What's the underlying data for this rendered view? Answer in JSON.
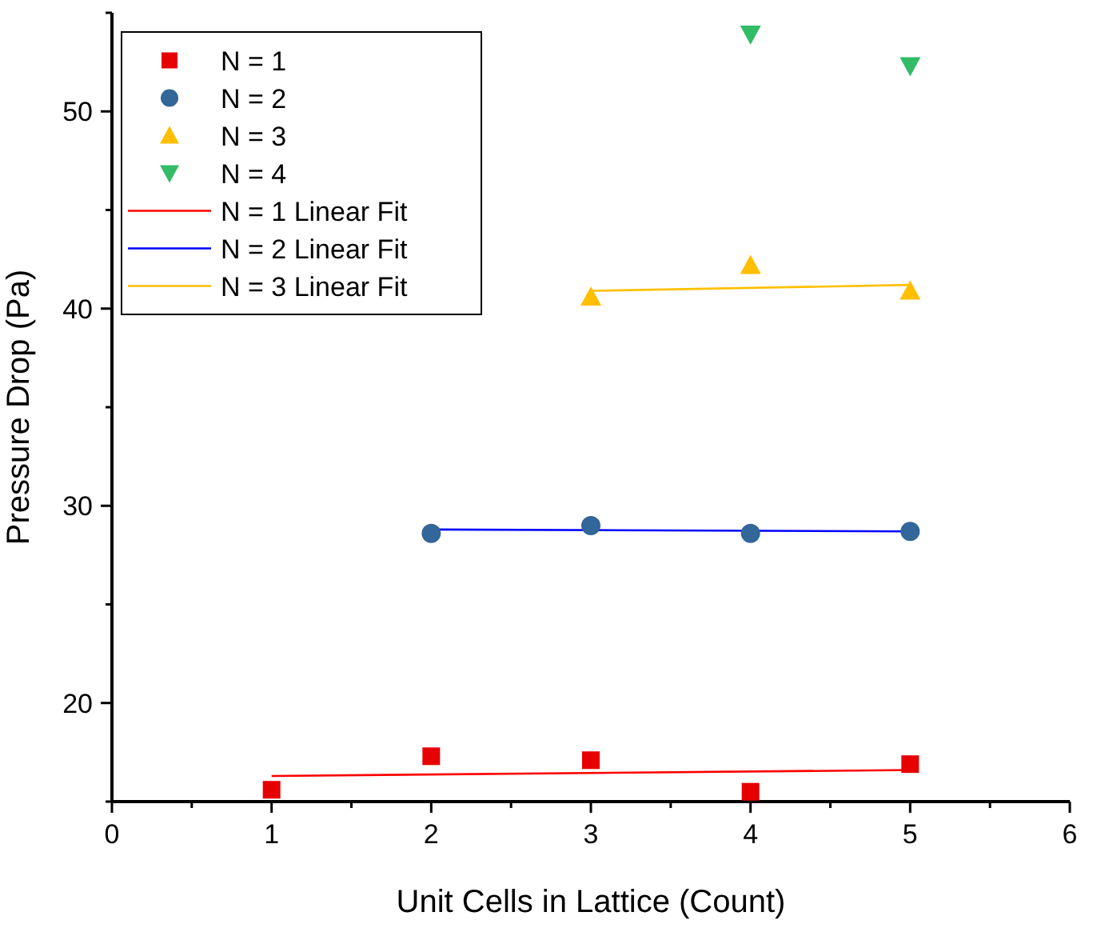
{
  "chart_data": {
    "type": "scatter",
    "xlabel": "Unit Cells in Lattice (Count)",
    "ylabel": "Pressure Drop (Pa)",
    "xlim": [
      0,
      6
    ],
    "xticks": [
      0,
      {
        "value": 0.5,
        "label": null
      },
      1,
      {
        "value": 1.5,
        "label": null
      },
      2,
      {
        "value": 2.5,
        "label": null
      },
      3,
      {
        "value": 3.5,
        "label": null
      },
      4,
      {
        "value": 4.5,
        "label": null
      },
      5,
      {
        "value": 5.5,
        "label": null
      },
      6
    ],
    "ylim": [
      15,
      55
    ],
    "yticks": [
      {
        "value": 15,
        "label": null
      },
      20,
      {
        "value": 25,
        "label": null
      },
      30,
      {
        "value": 35,
        "label": null
      },
      40,
      {
        "value": 45,
        "label": null
      },
      50,
      {
        "value": 55,
        "label": null
      }
    ],
    "grid": false,
    "legend": "top left",
    "series": [
      {
        "name": "N = 1",
        "marker": "square",
        "color": "#e60000",
        "x": [
          1,
          2,
          3,
          4,
          5
        ],
        "values": [
          15.6,
          17.3,
          17.1,
          15.5,
          16.9
        ]
      },
      {
        "name": "N = 2",
        "marker": "circle",
        "color": "#336699",
        "x": [
          2,
          3,
          4,
          5
        ],
        "values": [
          28.6,
          29.0,
          28.6,
          28.7
        ]
      },
      {
        "name": "N = 3",
        "marker": "triangle",
        "color": "#ffbf00",
        "x": [
          3,
          4,
          5
        ],
        "values": [
          40.6,
          42.2,
          40.9
        ]
      },
      {
        "name": "N = 4",
        "marker": "triangle-down",
        "color": "#33bb66",
        "x": [
          4,
          5
        ],
        "values": [
          53.9,
          52.3
        ]
      },
      {
        "name": "N = 1 Linear Fit",
        "type": "line",
        "marker": "none",
        "color": "#ff0000",
        "x": [
          1,
          5
        ],
        "values": [
          16.3,
          16.6
        ]
      },
      {
        "name": "N = 2 Linear Fit",
        "type": "line",
        "marker": "none",
        "color": "#0000ff",
        "x": [
          2,
          5
        ],
        "values": [
          28.8,
          28.7
        ]
      },
      {
        "name": "N = 3 Linear Fit",
        "type": "line",
        "marker": "none",
        "color": "#ffc000",
        "x": [
          3,
          5
        ],
        "values": [
          40.9,
          41.2
        ]
      }
    ]
  }
}
